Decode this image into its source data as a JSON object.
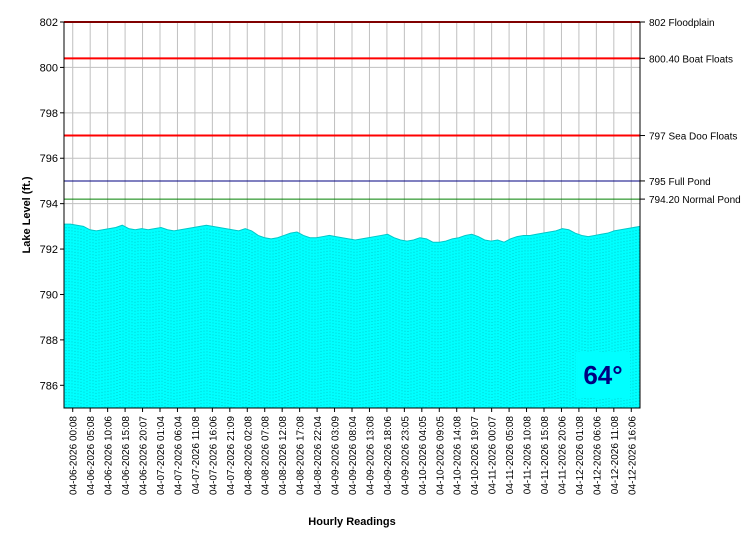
{
  "chart_data": {
    "type": "area",
    "xlabel": "Hourly Readings",
    "ylabel": "Lake Level (ft.)",
    "ylim": [
      785,
      802
    ],
    "yticks": [
      786,
      788,
      790,
      792,
      794,
      796,
      798,
      800,
      802
    ],
    "grid": true,
    "fill_color": "#00ffff",
    "x_tick_labels": [
      "04-06-2026 00:08",
      "04-06-2026 05:08",
      "04-06-2026 10:06",
      "04-06-2026 15:08",
      "04-06-2026 20:07",
      "04-07-2026 01:04",
      "04-07-2026 06:04",
      "04-07-2026 11:08",
      "04-07-2026 16:06",
      "04-07-2026 21:09",
      "04-08-2026 02:08",
      "04-08-2026 07:08",
      "04-08-2026 12:08",
      "04-08-2026 17:08",
      "04-08-2026 22:04",
      "04-09-2026 03:09",
      "04-09-2026 08:04",
      "04-09-2026 13:08",
      "04-09-2026 18:06",
      "04-09-2026 23:05",
      "04-10-2026 04:05",
      "04-10-2026 09:05",
      "04-10-2026 14:08",
      "04-10-2026 19:07",
      "04-11-2026 00:07",
      "04-11-2026 05:08",
      "04-11-2026 10:08",
      "04-11-2026 15:08",
      "04-11-2026 20:06",
      "04-12-2026 01:08",
      "04-12-2026 06:06",
      "04-12-2026 11:08",
      "04-12-2026 16:06"
    ],
    "series": [
      {
        "values": [
          793.1,
          793.1,
          793.05,
          793.0,
          792.85,
          792.8,
          792.85,
          792.9,
          792.95,
          793.05,
          792.9,
          792.85,
          792.9,
          792.85,
          792.9,
          792.95,
          792.85,
          792.8,
          792.85,
          792.9,
          792.95,
          793.0,
          793.05,
          793.0,
          792.95,
          792.9,
          792.85,
          792.8,
          792.9,
          792.8,
          792.6,
          792.5,
          792.45,
          792.5,
          792.6,
          792.7,
          792.75,
          792.6,
          792.5,
          792.5,
          792.55,
          792.6,
          792.55,
          792.5,
          792.45,
          792.4,
          792.45,
          792.5,
          792.55,
          792.6,
          792.65,
          792.5,
          792.4,
          792.35,
          792.4,
          792.5,
          792.45,
          792.3,
          792.3,
          792.35,
          792.45,
          792.5,
          792.6,
          792.65,
          792.55,
          792.4,
          792.35,
          792.4,
          792.3,
          792.45,
          792.55,
          792.6,
          792.6,
          792.65,
          792.7,
          792.75,
          792.8,
          792.9,
          792.85,
          792.7,
          792.6,
          792.55,
          792.6,
          792.65,
          792.7,
          792.8,
          792.85,
          792.9,
          792.95,
          793.0
        ]
      }
    ],
    "reference_lines": [
      {
        "value": 802,
        "label": "802 Floodplain",
        "color": "#ff0000"
      },
      {
        "value": 800.4,
        "label": "800.40 Boat Floats",
        "color": "#ff0000"
      },
      {
        "value": 797,
        "label": "797 Sea Doo Floats",
        "color": "#ff0000"
      },
      {
        "value": 795,
        "label": "795 Full Pond",
        "color": "#000080"
      },
      {
        "value": 794.2,
        "label": "794.20 Normal Pond",
        "color": "#008000"
      }
    ]
  },
  "temperature": "64°"
}
